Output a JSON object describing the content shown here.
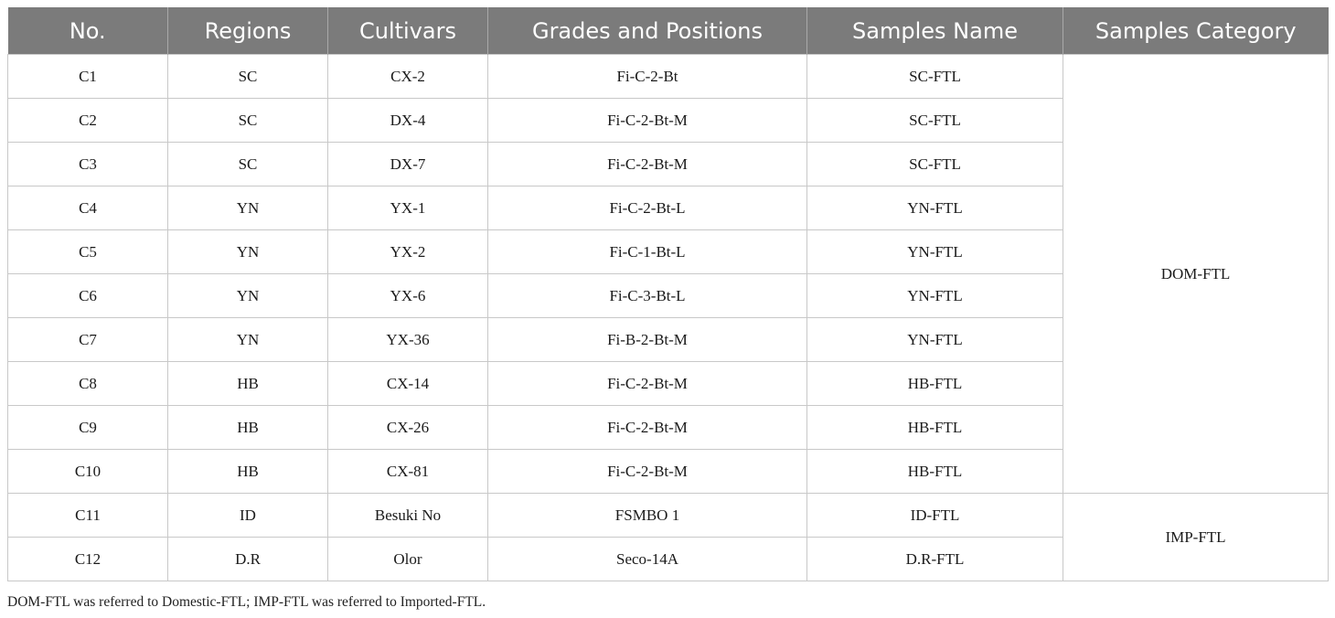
{
  "table": {
    "headers": [
      "No.",
      "Regions",
      "Cultivars",
      "Grades and Positions",
      "Samples Name",
      "Samples Category"
    ],
    "rows": [
      {
        "no": "C1",
        "region": "SC",
        "cultivar": "CX-2",
        "grade": "Fi-C-2-Bt",
        "sample": "SC-FTL"
      },
      {
        "no": "C2",
        "region": "SC",
        "cultivar": "DX-4",
        "grade": "Fi-C-2-Bt-M",
        "sample": "SC-FTL"
      },
      {
        "no": "C3",
        "region": "SC",
        "cultivar": "DX-7",
        "grade": "Fi-C-2-Bt-M",
        "sample": "SC-FTL"
      },
      {
        "no": "C4",
        "region": "YN",
        "cultivar": "YX-1",
        "grade": "Fi-C-2-Bt-L",
        "sample": "YN-FTL"
      },
      {
        "no": "C5",
        "region": "YN",
        "cultivar": "YX-2",
        "grade": "Fi-C-1-Bt-L",
        "sample": "YN-FTL"
      },
      {
        "no": "C6",
        "region": "YN",
        "cultivar": "YX-6",
        "grade": "Fi-C-3-Bt-L",
        "sample": "YN-FTL"
      },
      {
        "no": "C7",
        "region": "YN",
        "cultivar": "YX-36",
        "grade": "Fi-B-2-Bt-M",
        "sample": "YN-FTL"
      },
      {
        "no": "C8",
        "region": "HB",
        "cultivar": "CX-14",
        "grade": "Fi-C-2-Bt-M",
        "sample": "HB-FTL"
      },
      {
        "no": "C9",
        "region": "HB",
        "cultivar": "CX-26",
        "grade": "Fi-C-2-Bt-M",
        "sample": "HB-FTL"
      },
      {
        "no": "C10",
        "region": "HB",
        "cultivar": "CX-81",
        "grade": "Fi-C-2-Bt-M",
        "sample": "HB-FTL"
      },
      {
        "no": "C11",
        "region": "ID",
        "cultivar": "Besuki No",
        "grade": "FSMBO 1",
        "sample": "ID-FTL"
      },
      {
        "no": "C12",
        "region": "D.R",
        "cultivar": "Olor",
        "grade": "Seco-14A",
        "sample": "D.R-FTL"
      }
    ],
    "categories": [
      {
        "label": "DOM-FTL",
        "rowspan": 10
      },
      {
        "label": "IMP-FTL",
        "rowspan": 2
      }
    ]
  },
  "footnote": "DOM-FTL was referred to Domestic-FTL; IMP-FTL was referred to Imported-FTL."
}
